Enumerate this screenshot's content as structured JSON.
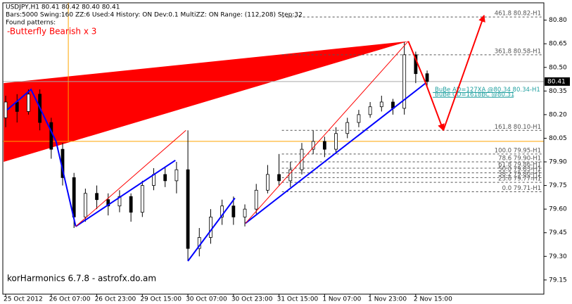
{
  "chart_data": {
    "type": "candlestick",
    "title": "USDJPY,H1  80.41 80.42 80.40 80.41",
    "subtitle": "Bars:5000  Swing:160  ZZ:6  Used:4  History: ON Dev:0.1  MultiZZ: ON  Range: (112,208)  Step:32",
    "patterns_heading": "Found patterns:",
    "pattern": "-Butterfly Bearish x 3",
    "footer": "korHarmonics 6.7.8 - astrofx.do.am",
    "x": [
      0,
      4,
      8,
      12,
      16,
      20,
      24,
      28,
      32,
      36,
      40,
      44,
      48,
      52,
      56,
      60,
      64,
      68,
      72,
      76,
      80,
      84,
      88,
      92,
      96,
      100,
      104,
      108,
      112,
      116,
      120,
      124,
      128,
      132,
      136,
      140,
      144,
      148
    ],
    "open": [
      80.18,
      80.28,
      80.22,
      80.33,
      80.15,
      79.98,
      79.8,
      79.55,
      79.7,
      79.66,
      79.62,
      79.68,
      79.58,
      79.75,
      79.82,
      79.78,
      79.85,
      79.35,
      79.42,
      79.55,
      79.62,
      79.55,
      79.6,
      79.72,
      79.82,
      79.78,
      79.85,
      79.98,
      80.03,
      79.98,
      80.08,
      80.15,
      80.2,
      80.25,
      80.28,
      80.24,
      80.58,
      80.46
    ],
    "high": [
      80.32,
      80.33,
      80.36,
      80.36,
      80.18,
      80.02,
      79.83,
      79.73,
      79.75,
      79.7,
      79.72,
      79.7,
      79.78,
      79.86,
      79.87,
      79.9,
      80.1,
      79.48,
      79.6,
      79.66,
      79.68,
      79.63,
      79.76,
      79.88,
      79.95,
      79.9,
      80.02,
      80.1,
      80.06,
      80.12,
      80.18,
      80.23,
      80.28,
      80.32,
      80.3,
      80.66,
      80.6,
      80.48
    ],
    "low": [
      80.12,
      80.15,
      80.2,
      80.1,
      79.92,
      79.75,
      79.48,
      79.52,
      79.6,
      79.56,
      79.58,
      79.52,
      79.55,
      79.72,
      79.74,
      79.7,
      79.27,
      79.3,
      79.38,
      79.5,
      79.5,
      79.49,
      79.57,
      79.7,
      79.75,
      79.74,
      79.82,
      79.95,
      79.93,
      79.95,
      80.05,
      80.12,
      80.18,
      80.22,
      80.2,
      80.2,
      80.4,
      80.38
    ],
    "close": [
      80.28,
      80.22,
      80.33,
      80.15,
      79.98,
      79.8,
      79.55,
      79.7,
      79.66,
      79.62,
      79.68,
      79.58,
      79.75,
      79.82,
      79.78,
      79.85,
      79.35,
      79.42,
      79.55,
      79.62,
      79.55,
      79.6,
      79.72,
      79.82,
      79.78,
      79.85,
      79.98,
      80.03,
      79.98,
      80.08,
      80.15,
      80.2,
      80.25,
      80.28,
      80.24,
      80.58,
      80.46,
      80.41
    ],
    "bull_color": "#ffffff",
    "bear_color": "#000000",
    "xlim": [
      -1,
      189
    ],
    "xticks": [
      {
        "value": 0,
        "label": "25 Oct 2012"
      },
      {
        "value": 16,
        "label": "26 Oct 07:00"
      },
      {
        "value": 32,
        "label": "26 Oct 23:00"
      },
      {
        "value": 48,
        "label": "29 Oct 15:00"
      },
      {
        "value": 64,
        "label": "30 Oct 07:00"
      },
      {
        "value": 80,
        "label": "30 Oct 23:00"
      },
      {
        "value": 96,
        "label": "31 Oct 15:00"
      },
      {
        "value": 112,
        "label": "1 Nov 07:00"
      },
      {
        "value": 128,
        "label": "1 Nov 23:00"
      },
      {
        "value": 144,
        "label": "2 Nov 15:00"
      }
    ],
    "ylim": [
      79.06,
      80.91
    ],
    "yticks": [
      79.15,
      {
        "value": 79.3,
        "label": "79.30"
      },
      79.45,
      {
        "value": 79.6,
        "label": "79.60"
      },
      79.75,
      {
        "value": 79.9,
        "label": "79.90"
      },
      80.05,
      {
        "value": 80.2,
        "label": "80.20"
      },
      80.35,
      {
        "value": 80.5,
        "label": "80.50"
      },
      80.65,
      {
        "value": 80.8,
        "label": "80.80"
      }
    ],
    "current_price": 80.41,
    "triangle": {
      "color": "#ff0000",
      "x": [
        -0.7,
        -0.7,
        141.4
      ],
      "y": [
        80.4,
        79.9,
        80.666
      ]
    },
    "lines": [
      {
        "color": "#0000ff",
        "width": 2,
        "x": [
          0.5,
          8.9,
          17.7,
          24.6
        ],
        "y": [
          80.23,
          80.36,
          80.03,
          79.49
        ]
      },
      {
        "color": "#0000ff",
        "width": 2,
        "x": [
          24.6,
          59.6
        ],
        "y": [
          79.49,
          79.91
        ]
      },
      {
        "color": "#0000ff",
        "width": 2,
        "x": [
          64,
          80.5
        ],
        "y": [
          79.27,
          79.67
        ]
      },
      {
        "color": "#0000ff",
        "width": 2,
        "x": [
          84.2,
          147.5
        ],
        "y": [
          79.51,
          80.4
        ]
      },
      {
        "color": "#ff0000",
        "width": 1,
        "x": [
          24.6,
          63.3
        ],
        "y": [
          79.49,
          80.1
        ]
      },
      {
        "color": "#ff0000",
        "width": 1,
        "x": [
          84.2,
          141.4
        ],
        "y": [
          79.51,
          80.666
        ]
      },
      {
        "color": "#ff0000",
        "width": 2,
        "x": [
          141.4,
          147.5,
          153.7
        ],
        "y": [
          80.666,
          80.4,
          80.1
        ]
      },
      {
        "color": "#ff0000",
        "width": 2,
        "x": [
          153.7,
          168
        ],
        "y": [
          80.1,
          80.83
        ]
      }
    ],
    "hline": 80.03,
    "vline": 22,
    "marker_color": "#ffa500",
    "levels_from": 97,
    "levels": [
      {
        "value": 80.82,
        "label": "461.8 80.82-H1"
      },
      {
        "value": 80.58,
        "label": "361.8 80.58-H1"
      },
      {
        "value": 80.1,
        "label": "161.8 80.10-H1"
      },
      {
        "value": 79.95,
        "label": "100.0 79.95-H1"
      },
      {
        "value": 79.9,
        "label": "78.6 79.90-H1"
      },
      {
        "value": 79.86,
        "label": "61.8 79.86-H1"
      },
      {
        "value": 79.83,
        "label": "50.0 79.83-H1"
      },
      {
        "value": 79.8,
        "label": "38.2 79.80-H1"
      },
      {
        "value": 79.77,
        "label": "23.6 79.77-H1"
      },
      {
        "value": 79.71,
        "label": "0.0 79.71-H1"
      }
    ],
    "projections_from": 150,
    "projections_color": "#20a0a0",
    "projections": [
      {
        "value": 80.34,
        "label": "BuBe AD=127XA @80.34  80.34-H1"
      },
      {
        "value": 80.31,
        "label": "BuBe CD=1618BC @80.31"
      }
    ]
  }
}
